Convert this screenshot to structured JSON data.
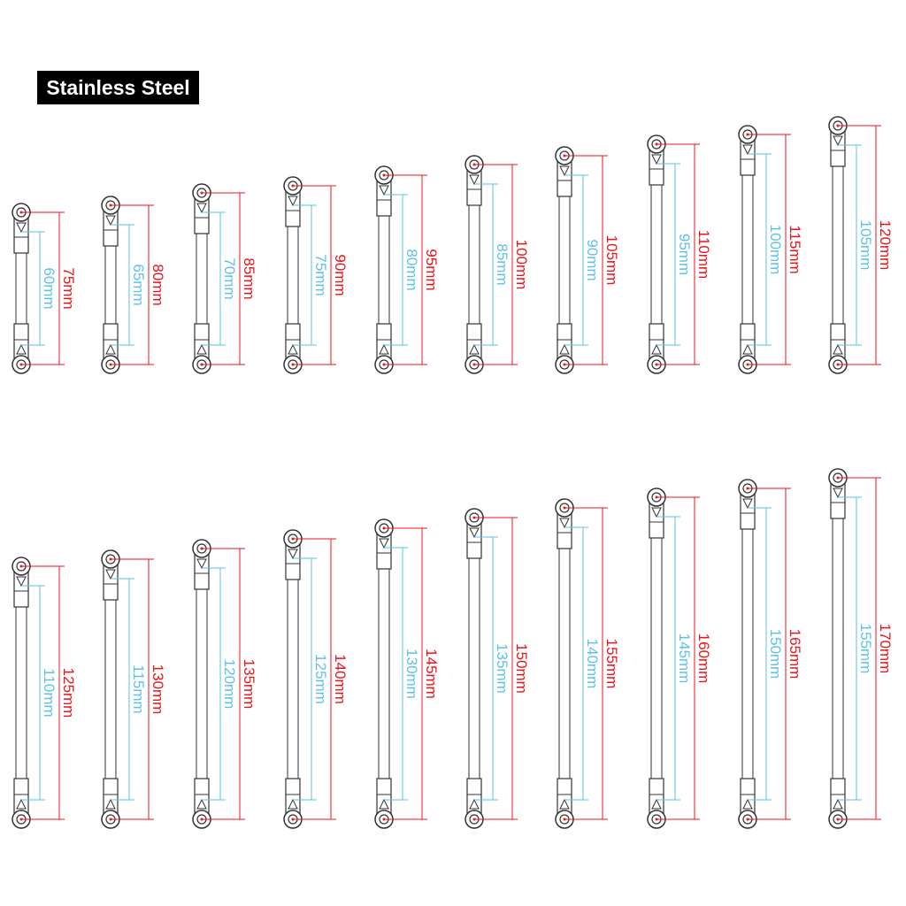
{
  "title": "Stainless Steel",
  "colors": {
    "overall": "#e8141b",
    "inner": "#5ec1ea",
    "part": "#333333"
  },
  "links": [
    {
      "overall": "75mm",
      "inner": "60mm"
    },
    {
      "overall": "80mm",
      "inner": "65mm"
    },
    {
      "overall": "85mm",
      "inner": "70mm"
    },
    {
      "overall": "90mm",
      "inner": "75mm"
    },
    {
      "overall": "95mm",
      "inner": "80mm"
    },
    {
      "overall": "100mm",
      "inner": "85mm"
    },
    {
      "overall": "105mm",
      "inner": "90mm"
    },
    {
      "overall": "110mm",
      "inner": "95mm"
    },
    {
      "overall": "115mm",
      "inner": "100mm"
    },
    {
      "overall": "120mm",
      "inner": "105mm"
    },
    {
      "overall": "125mm",
      "inner": "110mm"
    },
    {
      "overall": "130mm",
      "inner": "115mm"
    },
    {
      "overall": "135mm",
      "inner": "120mm"
    },
    {
      "overall": "140mm",
      "inner": "125mm"
    },
    {
      "overall": "145mm",
      "inner": "130mm"
    },
    {
      "overall": "150mm",
      "inner": "135mm"
    },
    {
      "overall": "155mm",
      "inner": "140mm"
    },
    {
      "overall": "160mm",
      "inner": "145mm"
    },
    {
      "overall": "165mm",
      "inner": "150mm"
    },
    {
      "overall": "170mm",
      "inner": "155mm"
    }
  ]
}
